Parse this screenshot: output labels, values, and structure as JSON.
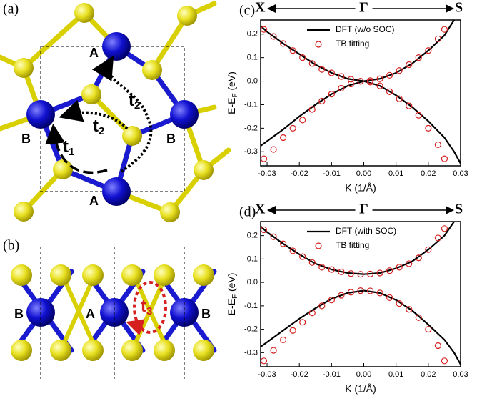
{
  "structure": {
    "a": {
      "label": "(a)",
      "atoms": [
        "A",
        "A",
        "B",
        "B"
      ],
      "hops": [
        {
          "main": "t",
          "sub": "1"
        },
        {
          "main": "t",
          "sub": "2"
        },
        {
          "main": "t",
          "sub": "2"
        }
      ]
    },
    "b": {
      "label": "(b)",
      "atoms": [
        "B",
        "A",
        "B"
      ],
      "hops": [
        {
          "main": "t",
          "sub": "3"
        }
      ]
    }
  },
  "chart_data": [
    {
      "type": "line",
      "label": "(c)",
      "path_labels": [
        "X",
        "Γ",
        "S"
      ],
      "xlabel": "K (1/Å)",
      "ylabel": [
        "E-E",
        "F",
        " (eV)"
      ],
      "xlim": [
        -0.032,
        0.03
      ],
      "xticks": [
        -0.03,
        -0.02,
        -0.01,
        {
          "value": 0,
          "label": "0.00"
        },
        0.01,
        0.02,
        0.03
      ],
      "ylim": [
        -0.36,
        0.26
      ],
      "yticks": [
        -0.3,
        -0.2,
        -0.1,
        {
          "value": 0,
          "label": "0.0"
        },
        0.1,
        0.2
      ],
      "series": [
        {
          "name": "DFT (w/o SOC)",
          "color": "#000000",
          "style": "line",
          "x": [
            -0.032,
            -0.03,
            -0.025,
            -0.02,
            -0.015,
            -0.01,
            -0.005,
            0,
            0.005,
            0.01,
            0.015,
            0.02,
            0.025,
            0.028,
            0.03
          ],
          "values": [
            [
              0.235,
              0.21,
              0.16,
              0.115,
              0.07,
              0.035,
              0.01,
              0,
              0.01,
              0.035,
              0.075,
              0.13,
              0.195,
              0.26,
              null
            ],
            [
              -0.275,
              -0.255,
              -0.205,
              -0.15,
              -0.1,
              -0.055,
              -0.02,
              0,
              -0.02,
              -0.06,
              -0.11,
              -0.17,
              -0.24,
              -0.3,
              -0.35
            ]
          ]
        },
        {
          "name": "TB fitting",
          "color": "#d62020",
          "style": "marker",
          "x": [
            -0.031,
            -0.028,
            -0.025,
            -0.022,
            -0.019,
            -0.016,
            -0.013,
            -0.01,
            -0.007,
            -0.004,
            -0.001,
            0.002,
            0.005,
            0.008,
            0.011,
            0.014,
            0.017,
            0.02,
            0.023,
            0.025
          ],
          "values": [
            [
              0.22,
              0.19,
              0.16,
              0.13,
              0.1,
              0.075,
              0.05,
              0.035,
              0.02,
              0.008,
              0,
              0.002,
              0.01,
              0.025,
              0.045,
              0.07,
              0.1,
              0.13,
              0.18,
              0.22
            ],
            [
              -0.33,
              -0.29,
              -0.24,
              -0.2,
              -0.165,
              -0.12,
              -0.085,
              -0.055,
              -0.03,
              -0.012,
              -0.001,
              -0.004,
              -0.02,
              -0.045,
              -0.075,
              -0.105,
              -0.145,
              -0.2,
              -0.27,
              -0.33
            ]
          ]
        }
      ]
    },
    {
      "type": "line",
      "label": "(d)",
      "path_labels": [
        "X",
        "Γ",
        "S"
      ],
      "xlabel": "K (1/Å)",
      "ylabel": [
        "E-E",
        "F",
        " (eV)"
      ],
      "xlim": [
        -0.032,
        0.03
      ],
      "xticks": [
        -0.03,
        -0.02,
        -0.01,
        {
          "value": 0,
          "label": "0.00"
        },
        0.01,
        0.02,
        0.03
      ],
      "ylim": [
        -0.36,
        0.26
      ],
      "yticks": [
        -0.3,
        -0.2,
        -0.1,
        {
          "value": 0,
          "label": "0.0"
        },
        0.1,
        0.2
      ],
      "series": [
        {
          "name": "DFT (with SOC)",
          "color": "#000000",
          "style": "line",
          "x": [
            -0.032,
            -0.03,
            -0.025,
            -0.02,
            -0.015,
            -0.01,
            -0.005,
            0,
            0.005,
            0.01,
            0.015,
            0.02,
            0.025,
            0.028,
            0.03
          ],
          "values": [
            [
              0.24,
              0.215,
              0.165,
              0.12,
              0.08,
              0.055,
              0.04,
              0.035,
              0.04,
              0.06,
              0.09,
              0.14,
              0.2,
              0.26,
              null
            ],
            [
              -0.275,
              -0.255,
              -0.205,
              -0.155,
              -0.11,
              -0.07,
              -0.045,
              -0.035,
              -0.045,
              -0.075,
              -0.12,
              -0.18,
              -0.245,
              -0.3,
              -0.35
            ]
          ]
        },
        {
          "name": "TB fitting",
          "color": "#d62020",
          "style": "marker",
          "x": [
            -0.031,
            -0.028,
            -0.025,
            -0.022,
            -0.019,
            -0.016,
            -0.013,
            -0.01,
            -0.007,
            -0.004,
            -0.001,
            0.002,
            0.005,
            0.008,
            0.011,
            0.014,
            0.017,
            0.02,
            0.023,
            0.025
          ],
          "values": [
            [
              0.225,
              0.195,
              0.165,
              0.135,
              0.11,
              0.085,
              0.065,
              0.055,
              0.045,
              0.038,
              0.035,
              0.036,
              0.04,
              0.05,
              0.065,
              0.08,
              0.105,
              0.14,
              0.19,
              0.23
            ],
            [
              -0.335,
              -0.29,
              -0.245,
              -0.205,
              -0.17,
              -0.13,
              -0.1,
              -0.075,
              -0.055,
              -0.042,
              -0.035,
              -0.036,
              -0.045,
              -0.065,
              -0.09,
              -0.115,
              -0.15,
              -0.2,
              -0.27,
              -0.335
            ]
          ]
        }
      ]
    }
  ]
}
